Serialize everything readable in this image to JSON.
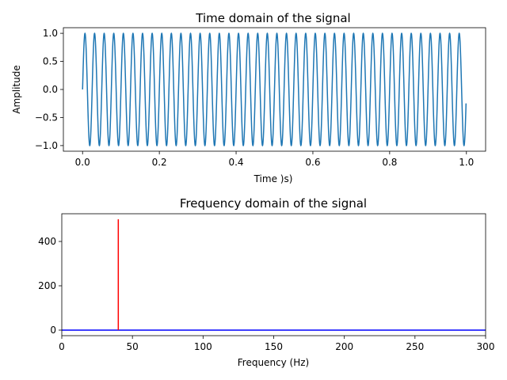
{
  "chart_data": [
    {
      "type": "line",
      "title": "Time domain of the signal",
      "xlabel": "Time )s)",
      "ylabel": "Amplitude",
      "xlim": [
        -0.05,
        1.05
      ],
      "ylim": [
        -1.1,
        1.1
      ],
      "xticks": [
        0.0,
        0.2,
        0.4,
        0.6,
        0.8,
        1.0
      ],
      "xtick_labels": [
        "0.0",
        "0.2",
        "0.4",
        "0.6",
        "0.8",
        "1.0"
      ],
      "yticks": [
        1.0,
        0.5,
        0.0,
        -0.5,
        -1.0
      ],
      "ytick_labels": [
        "1.0",
        "0.5",
        "0.0",
        "−0.5",
        "−1.0"
      ],
      "series": [
        {
          "function": "sin",
          "amplitude": 1,
          "frequency_hz": 40,
          "x_start": 0,
          "x_end": 0.999,
          "color": "#1f77b4"
        }
      ],
      "grid": false
    },
    {
      "type": "line",
      "title": "Frequency domain of the signal",
      "xlabel": "Frequency (Hz)",
      "ylabel": "",
      "xlim": [
        0,
        300
      ],
      "ylim": [
        -25,
        525
      ],
      "xticks": [
        0,
        50,
        100,
        150,
        200,
        250,
        300
      ],
      "xtick_labels": [
        "0",
        "50",
        "100",
        "150",
        "200",
        "250",
        "300"
      ],
      "yticks": [
        400,
        200,
        0
      ],
      "ytick_labels": [
        "400",
        "200",
        "0"
      ],
      "series": [
        {
          "x": [
            0,
            300
          ],
          "y": [
            0,
            0
          ],
          "color": "#0000ff"
        },
        {
          "x": [
            40,
            40
          ],
          "y": [
            0,
            500
          ],
          "color": "#ff0000"
        }
      ],
      "grid": false
    }
  ]
}
